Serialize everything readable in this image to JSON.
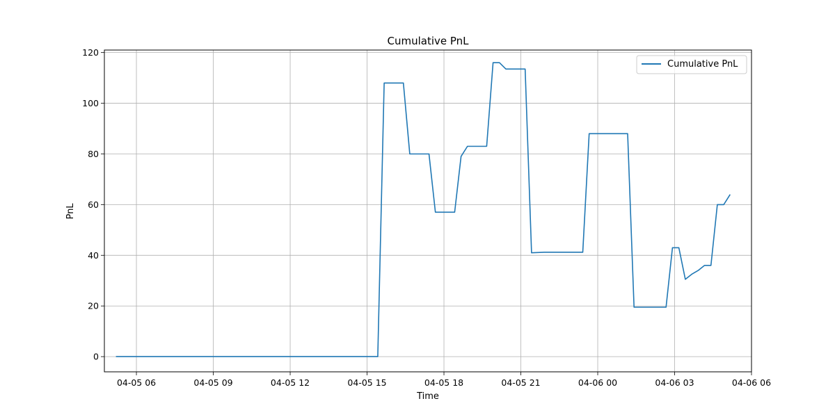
{
  "chart_data": {
    "type": "line",
    "title": "Cumulative PnL",
    "xlabel": "Time",
    "ylabel": "PnL",
    "grid": true,
    "legend_position": "top-right",
    "xlim": [
      "2025-04-05 04:45",
      "2025-04-06 06:00"
    ],
    "ylim": [
      -6,
      121
    ],
    "x_ticks": [
      "04-05 06",
      "04-05 09",
      "04-05 12",
      "04-05 15",
      "04-05 18",
      "04-05 21",
      "04-06 00",
      "04-06 03",
      "04-06 06"
    ],
    "y_ticks": [
      0,
      20,
      40,
      60,
      80,
      100,
      120
    ],
    "series": [
      {
        "name": "Cumulative PnL",
        "color": "#1f77b4",
        "points": [
          {
            "x": "2025-04-05 05:12",
            "y": 0
          },
          {
            "x": "2025-04-05 15:25",
            "y": 0
          },
          {
            "x": "2025-04-05 15:40",
            "y": 108
          },
          {
            "x": "2025-04-05 16:25",
            "y": 108
          },
          {
            "x": "2025-04-05 16:40",
            "y": 80
          },
          {
            "x": "2025-04-05 17:25",
            "y": 80
          },
          {
            "x": "2025-04-05 17:40",
            "y": 57
          },
          {
            "x": "2025-04-05 18:25",
            "y": 57
          },
          {
            "x": "2025-04-05 18:40",
            "y": 79
          },
          {
            "x": "2025-04-05 18:55",
            "y": 83
          },
          {
            "x": "2025-04-05 19:40",
            "y": 83
          },
          {
            "x": "2025-04-05 19:55",
            "y": 116
          },
          {
            "x": "2025-04-05 20:10",
            "y": 116
          },
          {
            "x": "2025-04-05 20:25",
            "y": 113.5
          },
          {
            "x": "2025-04-05 21:10",
            "y": 113.5
          },
          {
            "x": "2025-04-05 21:25",
            "y": 41
          },
          {
            "x": "2025-04-05 21:55",
            "y": 41.2
          },
          {
            "x": "2025-04-05 23:25",
            "y": 41.2
          },
          {
            "x": "2025-04-05 23:40",
            "y": 88
          },
          {
            "x": "2025-04-06 01:10",
            "y": 88
          },
          {
            "x": "2025-04-06 01:25",
            "y": 19.5
          },
          {
            "x": "2025-04-06 02:40",
            "y": 19.5
          },
          {
            "x": "2025-04-06 02:55",
            "y": 43
          },
          {
            "x": "2025-04-06 03:10",
            "y": 43
          },
          {
            "x": "2025-04-06 03:25",
            "y": 30.5
          },
          {
            "x": "2025-04-06 03:40",
            "y": 32.5
          },
          {
            "x": "2025-04-06 03:55",
            "y": 34
          },
          {
            "x": "2025-04-06 04:10",
            "y": 36
          },
          {
            "x": "2025-04-06 04:25",
            "y": 36
          },
          {
            "x": "2025-04-06 04:40",
            "y": 60
          },
          {
            "x": "2025-04-06 04:55",
            "y": 60
          },
          {
            "x": "2025-04-06 05:10",
            "y": 64
          }
        ]
      }
    ]
  }
}
